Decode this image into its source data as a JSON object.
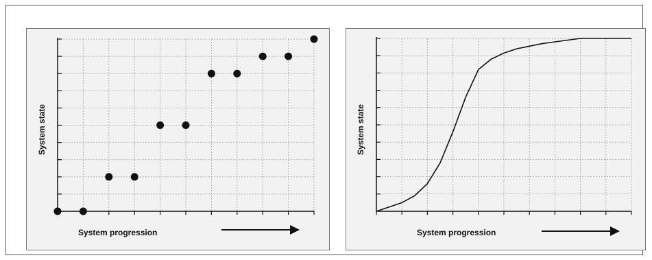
{
  "colors": {
    "panel_bg": "#f2f2f2",
    "ink": "#111111",
    "grid": "#b0b0b0"
  },
  "chart_data": [
    {
      "type": "scatter",
      "title": "",
      "xlabel": "System progression",
      "ylabel": "System state",
      "x": [
        0,
        1,
        2,
        3,
        4,
        5,
        6,
        7,
        8,
        9,
        10
      ],
      "y": [
        0,
        0,
        2,
        2,
        5,
        5,
        8,
        8,
        9,
        9,
        10
      ],
      "xlim": [
        0,
        10
      ],
      "ylim": [
        0,
        10
      ],
      "grid": true,
      "arrow": "right"
    },
    {
      "type": "line",
      "title": "",
      "xlabel": "System progression",
      "ylabel": "System state",
      "x": [
        0,
        0.5,
        1.0,
        1.5,
        2.0,
        2.5,
        3.0,
        3.5,
        4.0,
        4.5,
        5.0,
        5.5,
        6.0,
        6.5,
        7.0,
        7.5,
        8.0,
        8.5,
        9.0,
        9.5,
        10.0
      ],
      "y": [
        0,
        0.25,
        0.5,
        0.9,
        1.6,
        2.8,
        4.6,
        6.6,
        8.2,
        8.8,
        9.15,
        9.4,
        9.55,
        9.7,
        9.8,
        9.9,
        10,
        10,
        10,
        10,
        10
      ],
      "xlim": [
        0,
        10
      ],
      "ylim": [
        0,
        10
      ],
      "grid": true,
      "arrow": "right"
    }
  ]
}
